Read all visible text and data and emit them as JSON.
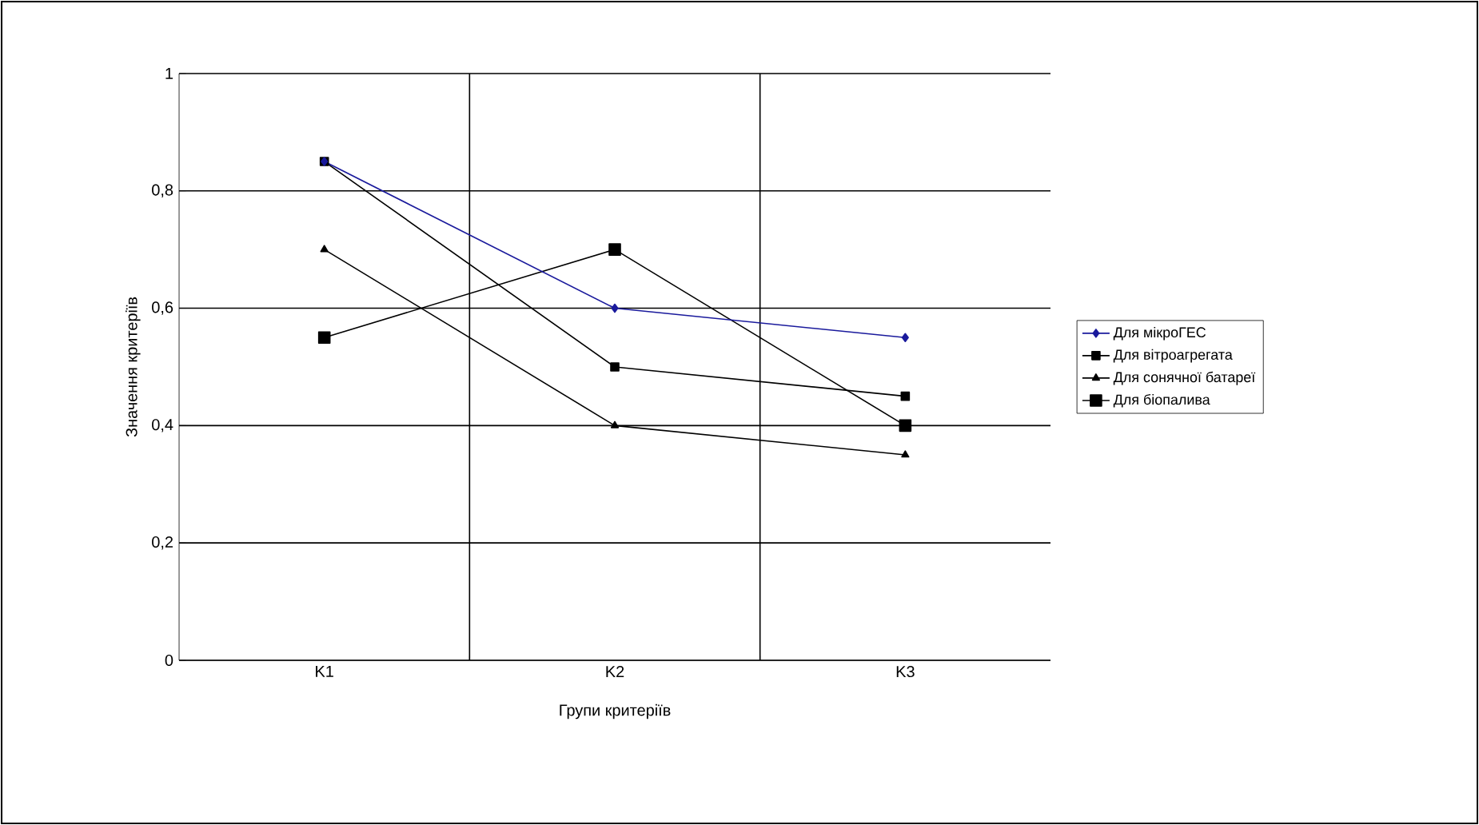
{
  "chart_data": {
    "type": "line",
    "xlabel": "Групи критеріїв",
    "ylabel": "Значення критеріїв",
    "categories": [
      "K1",
      "K2",
      "K3"
    ],
    "series": [
      {
        "name": "Для мікроГЕС",
        "color": "#1a1a9c",
        "marker": "diamond",
        "values": [
          0.85,
          0.6,
          0.55
        ]
      },
      {
        "name": "Для вітроагрегата",
        "color": "#000000",
        "marker": "square",
        "values": [
          0.85,
          0.5,
          0.45
        ]
      },
      {
        "name": "Для сонячної батареї",
        "color": "#000000",
        "marker": "triangle",
        "values": [
          0.7,
          0.4,
          0.35
        ]
      },
      {
        "name": "Для біопалива",
        "color": "#000000",
        "marker": "square",
        "values": [
          0.55,
          0.7,
          0.4
        ]
      }
    ],
    "ylim": [
      0,
      1
    ],
    "yticks": [
      0,
      {
        "value": 0.2,
        "label": "0,2"
      },
      {
        "value": 0.4,
        "label": "0,4"
      },
      {
        "value": 0.6,
        "label": "0,6"
      },
      {
        "value": 0.8,
        "label": "0,8"
      },
      1
    ],
    "grid": true,
    "legend": "right",
    "line_style": "solid"
  }
}
